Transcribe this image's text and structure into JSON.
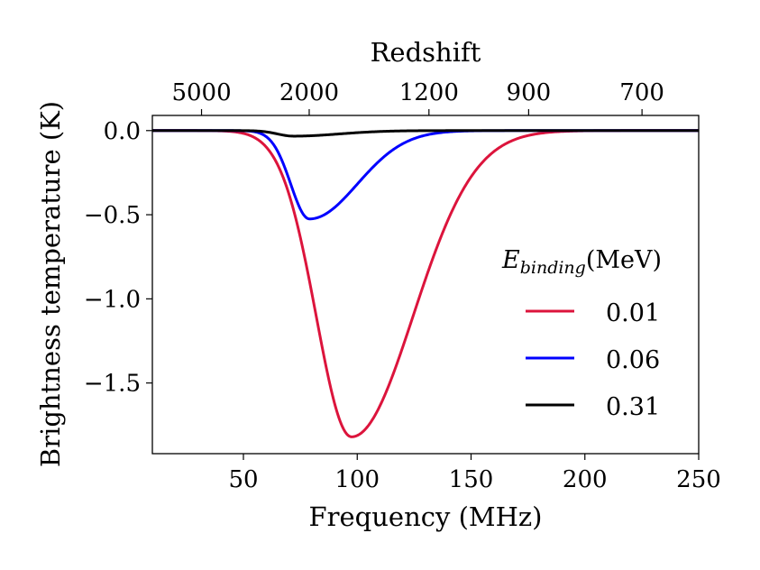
{
  "chart_data": {
    "type": "line",
    "xlabel": "Frequency (MHz)",
    "ylabel": "Brightness temperature (K)",
    "top_xlabel": "Redshift",
    "xlim": [
      10,
      250
    ],
    "ylim": [
      -1.92,
      0.09
    ],
    "xticks": [
      50,
      100,
      150,
      200,
      250
    ],
    "yticks": [
      0.0,
      -0.5,
      -1.0,
      -1.5
    ],
    "xtick_labels": [
      "50",
      "100",
      "150",
      "200",
      "250"
    ],
    "ytick_labels": [
      "0.0",
      "−0.5",
      "−1.0",
      "−1.5"
    ],
    "top_ticks": [
      {
        "label": "5000",
        "freq": 31.6
      },
      {
        "label": "2000",
        "freq": 78.9
      },
      {
        "label": "1200",
        "freq": 131.5
      },
      {
        "label": "900",
        "freq": 175.3
      },
      {
        "label": "700",
        "freq": 225.1
      }
    ],
    "legend": {
      "title_main": "E",
      "title_sub": "binding",
      "title_unit": "(MeV)",
      "placement": "right"
    },
    "series": [
      {
        "name": "0.01",
        "color": "#dc143c",
        "center": 97.5,
        "depth": -1.82,
        "width_left": 15.5,
        "width_right": 27
      },
      {
        "name": "0.06",
        "color": "#0000ff",
        "center": 79,
        "depth": -0.525,
        "width_left": 8.2,
        "width_right": 21
      },
      {
        "name": "0.31",
        "color": "#000000",
        "center": 72,
        "depth": -0.033,
        "width_left": 7,
        "width_right": 20
      }
    ]
  }
}
